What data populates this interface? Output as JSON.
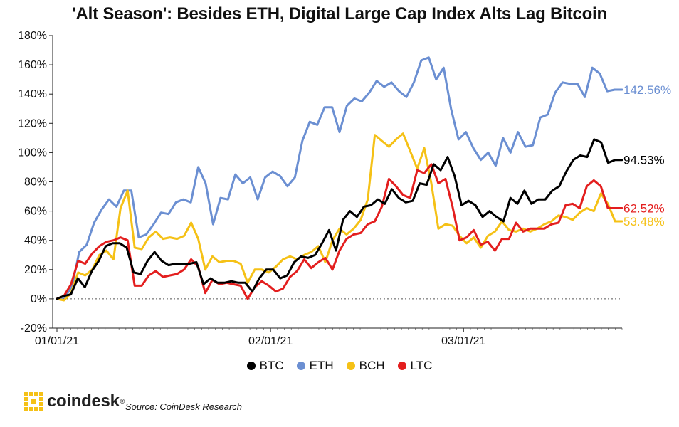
{
  "title": "'Alt Season': Besides ETH, Digital Large Cap Index Alts Lag Bitcoin",
  "source": "Source: CoinDesk Research",
  "brand": "coindesk",
  "brand_mark": "®",
  "colors": {
    "BTC": "#000000",
    "ETH": "#6b8fd2",
    "BCH": "#f5c116",
    "LTC": "#e31e1e",
    "grid": "#dddddd",
    "zero": "#555555"
  },
  "chart_data": {
    "type": "line",
    "title": "'Alt Season': Besides ETH, Digital Large Cap Index Alts Lag Bitcoin",
    "xlabel": "",
    "ylabel": "",
    "x_start": "2021-01-01",
    "x_end": "2021-03-24",
    "x_ticks": [
      {
        "date": "2021-01-01",
        "label": "01/01/21"
      },
      {
        "date": "2021-02-01",
        "label": "02/01/21"
      },
      {
        "date": "2021-03-01",
        "label": "03/01/21"
      }
    ],
    "ylim": [
      -20,
      180
    ],
    "y_ticks": [
      -20,
      0,
      20,
      40,
      60,
      80,
      100,
      120,
      140,
      160,
      180
    ],
    "y_format": "percent",
    "grid": false,
    "zero_line": "dotted",
    "legend_position": "bottom",
    "series": [
      {
        "name": "BTC",
        "color": "#000000",
        "end_label": "94.53%",
        "values": [
          0,
          2,
          3,
          14,
          8,
          19,
          26,
          36,
          38,
          38,
          35,
          18,
          17,
          26,
          32,
          26,
          23,
          24,
          24,
          24,
          25,
          10,
          14,
          11,
          11,
          12,
          11,
          11,
          5,
          14,
          20,
          20,
          14,
          16,
          25,
          29,
          28,
          30,
          38,
          47,
          33,
          54,
          60,
          56,
          63,
          64,
          68,
          65,
          75,
          69,
          66,
          67,
          79,
          78,
          92,
          88,
          97,
          84,
          64,
          67,
          64,
          56,
          60,
          56,
          53,
          69,
          65,
          74,
          65,
          68,
          68,
          74,
          77,
          87,
          95,
          98,
          97,
          109,
          107,
          93,
          95,
          95
        ]
      },
      {
        "name": "ETH",
        "color": "#6b8fd2",
        "end_label": "142.56%",
        "values": [
          0,
          1,
          8,
          32,
          37,
          52,
          61,
          68,
          63,
          74,
          74,
          42,
          44,
          51,
          59,
          58,
          66,
          68,
          66,
          90,
          79,
          51,
          69,
          68,
          85,
          79,
          83,
          68,
          83,
          87,
          84,
          77,
          83,
          108,
          121,
          119,
          131,
          131,
          114,
          132,
          137,
          135,
          141,
          149,
          145,
          148,
          142,
          138,
          148,
          163,
          165,
          150,
          158,
          130,
          109,
          114,
          103,
          95,
          100,
          91,
          110,
          100,
          114,
          104,
          105,
          124,
          126,
          141,
          148,
          147,
          147,
          138,
          158,
          154,
          142,
          143,
          143
        ]
      },
      {
        "name": "BCH",
        "color": "#f5c116",
        "end_label": "53.48%",
        "values": [
          0,
          -1,
          4,
          18,
          16,
          20,
          30,
          33,
          27,
          62,
          74,
          35,
          34,
          42,
          46,
          41,
          42,
          41,
          43,
          52,
          41,
          20,
          29,
          25,
          26,
          26,
          24,
          11,
          20,
          20,
          18,
          22,
          27,
          29,
          27,
          30,
          32,
          36,
          25,
          40,
          48,
          44,
          48,
          54,
          68,
          112,
          108,
          104,
          109,
          113,
          101,
          89,
          103,
          79,
          48,
          51,
          50,
          43,
          38,
          42,
          35,
          43,
          46,
          53,
          47,
          46,
          48,
          46,
          48,
          51,
          53,
          57,
          56,
          54,
          59,
          62,
          60,
          72,
          65,
          53,
          53
        ]
      },
      {
        "name": "LTC",
        "color": "#e31e1e",
        "end_label": "62.52%",
        "values": [
          0,
          2,
          10,
          26,
          24,
          31,
          36,
          39,
          40,
          42,
          40,
          9,
          9,
          16,
          19,
          15,
          16,
          17,
          20,
          27,
          22,
          4,
          13,
          10,
          11,
          10,
          9,
          0,
          8,
          12,
          9,
          5,
          7,
          15,
          19,
          27,
          21,
          25,
          28,
          20,
          33,
          41,
          44,
          45,
          51,
          53,
          63,
          82,
          77,
          71,
          69,
          88,
          86,
          92,
          79,
          82,
          63,
          40,
          42,
          47,
          37,
          39,
          33,
          41,
          41,
          52,
          46,
          48,
          48,
          48,
          51,
          52,
          64,
          65,
          62,
          77,
          81,
          77,
          62,
          62,
          62
        ]
      }
    ]
  }
}
